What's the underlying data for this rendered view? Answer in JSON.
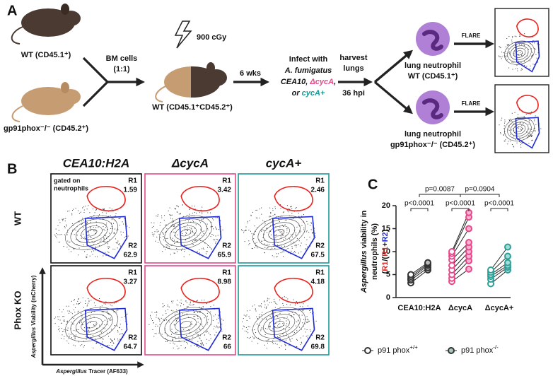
{
  "panel_a": {
    "label": "A",
    "donor_wt": "WT (CD45.1⁺)",
    "donor_ko": "gp91phox⁻/⁻ (CD45.2⁺)",
    "bm_cells": "BM cells",
    "ratio": "(1:1)",
    "dose": "900 cGy",
    "recipient": "WT (CD45.1⁺CD45.2⁺)",
    "wait": "6 wks",
    "infect_line1": "Infect with",
    "infect_line2": "A. fumigatus",
    "infect_line3": [
      {
        "text": "CEA10, ",
        "color": "#111111"
      },
      {
        "text": "ΔcycA",
        "color": "#e8478b"
      },
      {
        "text": ",",
        "color": "#111111"
      }
    ],
    "infect_line4": [
      {
        "text": "or ",
        "color": "#111111"
      },
      {
        "text": "cycA+",
        "color": "#1a9a96"
      }
    ],
    "harvest": [
      "harvest",
      "lungs",
      "36 hpi"
    ],
    "neutrophil_wt": [
      "lung neutrophil",
      "WT (CD45.1⁺)"
    ],
    "neutrophil_ko": [
      "lung neutrophil",
      "gp91phox⁻/⁻ (CD45.2⁺)"
    ],
    "method": "FLARE"
  },
  "panel_b": {
    "label": "B",
    "columns": [
      {
        "title": "CEA10:H2A",
        "color": "#111111"
      },
      {
        "title": "ΔcycA",
        "color": "#e8478b"
      },
      {
        "title": "cycA+",
        "color": "#1a9a96"
      }
    ],
    "rows": [
      "WT",
      "Phox KO"
    ],
    "gating_note": [
      "gated on",
      "neutrophils"
    ],
    "gate_labels": [
      "R1",
      "R2"
    ],
    "gate_colors": [
      "#e8231f",
      "#1f2bd6"
    ],
    "plots": [
      {
        "r1": 1.59,
        "r2": 62.9
      },
      {
        "r1": 3.42,
        "r2": 65.9
      },
      {
        "r1": 2.46,
        "r2": 67.5
      },
      {
        "r1": 3.27,
        "r2": 64.7
      },
      {
        "r1": 8.98,
        "r2": 66
      },
      {
        "r1": 4.18,
        "r2": 69.8
      }
    ],
    "y_axis": {
      "italic": "Aspergillus",
      "rest": " Viability (mCherry)",
      "color": "#e8231f"
    },
    "x_axis": {
      "italic": "Aspergillus",
      "rest": " Tracer (AF633)",
      "color": "#1f2bd6"
    }
  },
  "chart_data": {
    "type": "paired-scatter",
    "label": "C",
    "categories": [
      "CEA10:H2A",
      "ΔcycA",
      "ΔcycA+"
    ],
    "category_colors": [
      "#333333",
      "#e8478b",
      "#2aa198"
    ],
    "category_fills": [
      "#bbbbbb",
      "#f7b3cf",
      "#a6dcd5"
    ],
    "ylim": [
      0,
      20
    ],
    "yticks": [
      0,
      5,
      10,
      15,
      20
    ],
    "ylabel": {
      "italic": "Aspergillus",
      "line1_rest": " viability in",
      "line2": "neutrophils (%)",
      "line3": [
        {
          "text": "(",
          "color": "#111111"
        },
        {
          "text": "R1",
          "color": "#e8231f"
        },
        {
          "text": "/(",
          "color": "#111111"
        },
        {
          "text": "R1",
          "color": "#e8231f"
        },
        {
          "text": "+",
          "color": "#111111"
        },
        {
          "text": "R2",
          "color": "#1f2bd6"
        },
        {
          "text": ")",
          "color": "#111111"
        }
      ]
    },
    "series": [
      {
        "name": "p91 phox",
        "name_sup": "+/+",
        "legend_fill": "#ffffff",
        "values": [
          [
            3.2,
            3.8,
            4.2,
            4.6,
            5.0
          ],
          [
            3.5,
            4.2,
            5.0,
            6.0,
            7.0,
            8.2,
            9.0,
            9.6,
            10.0
          ],
          [
            3.0,
            4.0,
            4.6,
            5.0,
            5.5,
            6.0
          ]
        ]
      },
      {
        "name": "p91 phox",
        "name_sup": "-/-",
        "legend_fill": "#a6c9c3",
        "values": [
          [
            6.0,
            6.5,
            7.0,
            7.3,
            7.6
          ],
          [
            6.2,
            8.0,
            9.0,
            10.0,
            11.0,
            12.0,
            15.0,
            17.5,
            18.5
          ],
          [
            6.0,
            6.6,
            7.0,
            7.6,
            9.0,
            11.0
          ]
        ]
      }
    ],
    "comparisons": [
      {
        "between": [
          0,
          1
        ],
        "label": "p=0.0087"
      },
      {
        "between": [
          1,
          2
        ],
        "label": "p=0.0904"
      }
    ],
    "within": [
      "p<0.0001",
      "p<0.0001",
      "p<0.0001"
    ]
  }
}
